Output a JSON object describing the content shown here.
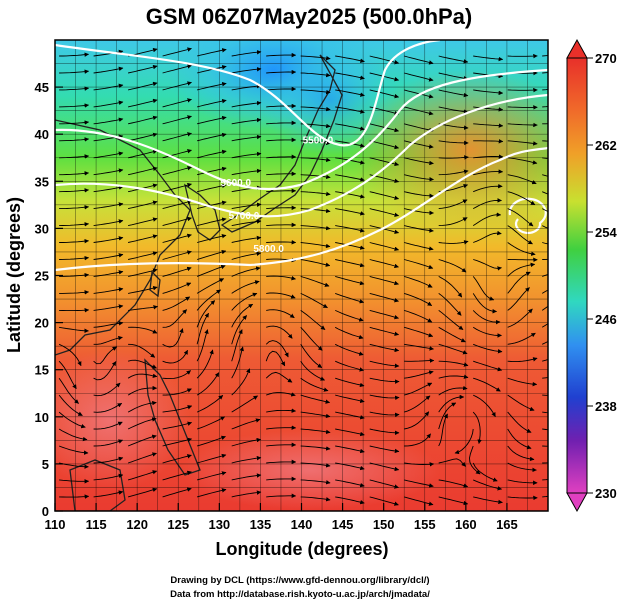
{
  "chart_data": {
    "type": "heatmap",
    "title": "GSM 06Z07May2025 (500.0hPa)",
    "xlabel": "Longitude (degrees)",
    "ylabel": "Latitude  (degrees)",
    "xlim": [
      110,
      170
    ],
    "ylim": [
      0,
      50
    ],
    "x_ticks": [
      110,
      115,
      120,
      125,
      130,
      135,
      140,
      145,
      150,
      155,
      160,
      165
    ],
    "y_ticks": [
      0,
      5,
      10,
      15,
      20,
      25,
      30,
      35,
      40,
      45
    ],
    "colorbar": {
      "min": 230,
      "max": 270,
      "ticks": [
        270,
        262,
        254,
        246,
        238,
        230
      ],
      "ticks_text": [
        "270",
        "262",
        "254",
        "246",
        "238",
        "230"
      ]
    },
    "contours": [
      {
        "label": "5500.0",
        "x": 142,
        "y": 39
      },
      {
        "label": "5600.0",
        "x": 132,
        "y": 34.5
      },
      {
        "label": "5700.0",
        "x": 133,
        "y": 31
      },
      {
        "label": "5800.0",
        "x": 136,
        "y": 27.5
      }
    ],
    "field_description": "500 hPa temperature (K) shaded, geopotential height contours (white) and wind streamlines (black)"
  },
  "credits": {
    "line1": "Drawing by DCL (https://www.gfd-dennou.org/library/dcl/)",
    "line2": "Data from http://database.rish.kyoto-u.ac.jp/arch/jmadata/"
  }
}
